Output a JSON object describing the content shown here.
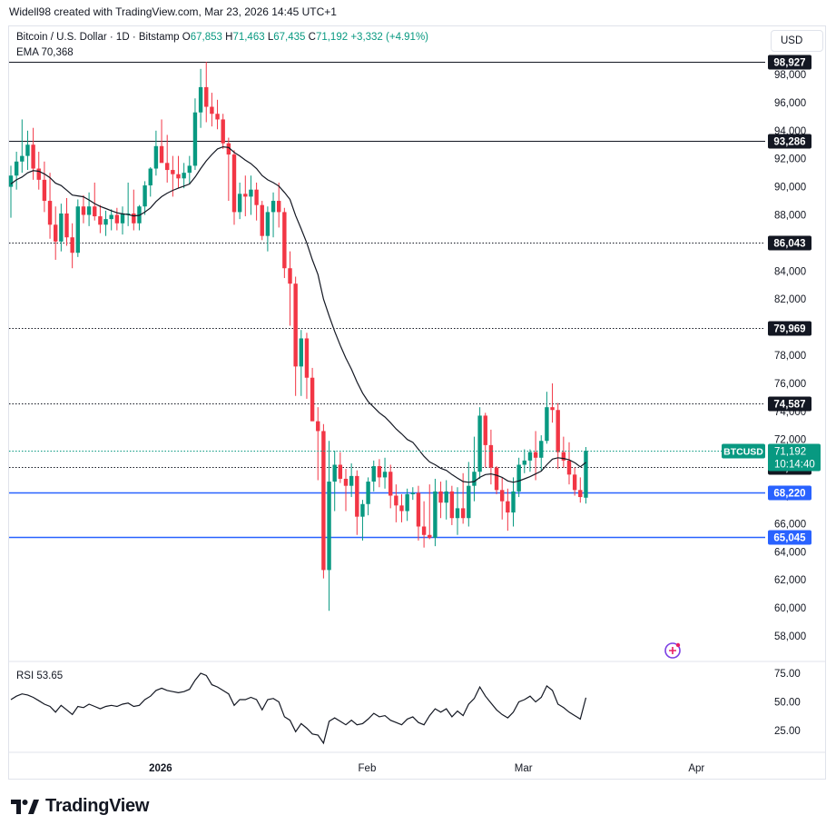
{
  "attribution": "Widell98 created with TradingView.com, Mar 23, 2026 14:45 UTC+1",
  "legend": {
    "symbol": "Bitcoin / U.S. Dollar · 1D · Bitstamp",
    "o_label": "O",
    "o": "67,853",
    "h_label": "H",
    "h": "71,463",
    "l_label": "L",
    "l": "67,435",
    "c_label": "C",
    "c": "71,192",
    "change": "+3,332 (+4.91%)",
    "ema_label": "EMA",
    "ema": "70,368",
    "rsi_label": "RSI",
    "rsi": "53.65"
  },
  "currency_button": "USD",
  "brand": "TradingView",
  "colors": {
    "up": "#089981",
    "down": "#f23645",
    "ema": "#131722",
    "blue": "#2962ff",
    "rsi": "#131722"
  },
  "chart_data": {
    "type": "candlestick",
    "y_axis": {
      "min": 57000,
      "max": 99500,
      "ticks": [
        "98,000",
        "96,000",
        "94,000",
        "92,000",
        "90,000",
        "88,000",
        "86,000",
        "84,000",
        "82,000",
        "80,000",
        "78,000",
        "76,000",
        "74,000",
        "72,000",
        "70,000",
        "68,000",
        "66,000",
        "64,000",
        "62,000",
        "60,000",
        "58,000"
      ],
      "tick_values": [
        98000,
        96000,
        94000,
        92000,
        90000,
        88000,
        86000,
        84000,
        82000,
        80000,
        78000,
        76000,
        74000,
        72000,
        70000,
        68000,
        66000,
        64000,
        62000,
        60000,
        58000
      ]
    },
    "x_axis": {
      "labels": [
        "2026",
        "Feb",
        "Mar",
        "Apr"
      ],
      "label_index": [
        26,
        63,
        91,
        122
      ]
    },
    "horizontal_levels": [
      {
        "value": 98927,
        "label": "98,927",
        "style": "solid",
        "color": "#131722"
      },
      {
        "value": 93286,
        "label": "93,286",
        "style": "solid",
        "color": "#131722"
      },
      {
        "value": 86043,
        "label": "86,043",
        "style": "dotted",
        "color": "#131722"
      },
      {
        "value": 79969,
        "label": "79,969",
        "style": "dotted",
        "color": "#131722"
      },
      {
        "value": 74587,
        "label": "74,587",
        "style": "dotted",
        "color": "#131722"
      },
      {
        "value": 70043,
        "label": "70,043",
        "style": "dotted",
        "color": "#131722"
      },
      {
        "value": 68220,
        "label": "68,220",
        "style": "solid",
        "color": "#2962ff"
      },
      {
        "value": 65045,
        "label": "65,045",
        "style": "solid",
        "color": "#2962ff"
      }
    ],
    "price_tag": {
      "symbol": "BTCUSD",
      "price": "71,192",
      "countdown": "10:14:40",
      "value": 71192
    },
    "candles": [
      [
        90000,
        91500,
        87800,
        90800
      ],
      [
        90800,
        92500,
        89800,
        91800
      ],
      [
        91800,
        94800,
        91000,
        92200
      ],
      [
        92200,
        94000,
        91200,
        93000
      ],
      [
        93000,
        94200,
        90500,
        91300
      ],
      [
        91300,
        92500,
        89800,
        90500
      ],
      [
        90500,
        91800,
        88200,
        89000
      ],
      [
        89000,
        91000,
        86300,
        87300
      ],
      [
        87300,
        88600,
        84800,
        86100
      ],
      [
        86100,
        88800,
        85400,
        88100
      ],
      [
        88100,
        89200,
        85800,
        86400
      ],
      [
        86400,
        87400,
        84200,
        85300
      ],
      [
        85300,
        89100,
        85000,
        88600
      ],
      [
        88600,
        89400,
        87400,
        88000
      ],
      [
        88000,
        89600,
        87200,
        88600
      ],
      [
        88600,
        90300,
        87600,
        87900
      ],
      [
        87900,
        88700,
        86700,
        87300
      ],
      [
        87300,
        88300,
        86500,
        87700
      ],
      [
        87700,
        88400,
        86900,
        88000
      ],
      [
        88000,
        88500,
        86900,
        87400
      ],
      [
        87400,
        88600,
        86600,
        88100
      ],
      [
        88100,
        90300,
        87200,
        88100
      ],
      [
        88100,
        89800,
        86900,
        87400
      ],
      [
        87400,
        88700,
        86900,
        88600
      ],
      [
        88600,
        90400,
        88000,
        90100
      ],
      [
        90100,
        91400,
        89300,
        91300
      ],
      [
        91300,
        94000,
        90800,
        92900
      ],
      [
        92900,
        94800,
        92000,
        91700
      ],
      [
        91700,
        93700,
        90300,
        91200
      ],
      [
        91200,
        92200,
        89300,
        90900
      ],
      [
        90900,
        92200,
        89900,
        90600
      ],
      [
        90600,
        91700,
        89900,
        91000
      ],
      [
        91000,
        92200,
        90200,
        91500
      ],
      [
        91500,
        96300,
        91200,
        95300
      ],
      [
        95300,
        98400,
        94200,
        97100
      ],
      [
        97100,
        98900,
        94600,
        95700
      ],
      [
        95700,
        96700,
        94300,
        95200
      ],
      [
        95200,
        96200,
        94100,
        94800
      ],
      [
        94800,
        95200,
        92700,
        93100
      ],
      [
        93100,
        93500,
        89000,
        92300
      ],
      [
        92300,
        92600,
        87300,
        88200
      ],
      [
        88200,
        90300,
        87700,
        89500
      ],
      [
        89500,
        90800,
        87900,
        89300
      ],
      [
        89300,
        90800,
        88000,
        89800
      ],
      [
        89800,
        90300,
        87600,
        88700
      ],
      [
        88700,
        89000,
        86200,
        86500
      ],
      [
        86500,
        88600,
        85400,
        88200
      ],
      [
        88200,
        89600,
        86400,
        89000
      ],
      [
        89000,
        90300,
        87100,
        88200
      ],
      [
        88200,
        88500,
        83500,
        84200
      ],
      [
        84200,
        85400,
        80100,
        83100
      ],
      [
        83100,
        83600,
        75100,
        77200
      ],
      [
        77200,
        79800,
        75100,
        79200
      ],
      [
        79200,
        79600,
        74900,
        76400
      ],
      [
        76400,
        77100,
        73300,
        73300
      ],
      [
        73300,
        74300,
        69100,
        72600
      ],
      [
        72600,
        73100,
        62100,
        62700
      ],
      [
        62700,
        71900,
        59800,
        69000
      ],
      [
        69000,
        71200,
        66900,
        70200
      ],
      [
        70200,
        71100,
        68900,
        69200
      ],
      [
        69200,
        69900,
        66900,
        68700
      ],
      [
        68700,
        70300,
        67900,
        69400
      ],
      [
        69400,
        69800,
        65200,
        66500
      ],
      [
        66500,
        67700,
        64800,
        67400
      ],
      [
        67400,
        69300,
        66600,
        69000
      ],
      [
        69000,
        70500,
        68300,
        70100
      ],
      [
        70100,
        70600,
        68600,
        69300
      ],
      [
        69300,
        70700,
        68500,
        69700
      ],
      [
        69700,
        70200,
        67100,
        68000
      ],
      [
        68000,
        68800,
        66100,
        67300
      ],
      [
        67300,
        68100,
        66100,
        66900
      ],
      [
        66900,
        68500,
        66200,
        68100
      ],
      [
        68100,
        68600,
        67700,
        68200
      ],
      [
        68200,
        68700,
        64800,
        65800
      ],
      [
        65800,
        67600,
        64300,
        65200
      ],
      [
        65200,
        68800,
        64900,
        65000
      ],
      [
        65000,
        69200,
        64400,
        68300
      ],
      [
        68300,
        69000,
        66400,
        67500
      ],
      [
        67500,
        69100,
        66300,
        68300
      ],
      [
        68300,
        68700,
        65900,
        66400
      ],
      [
        66400,
        68600,
        65200,
        67100
      ],
      [
        67100,
        69600,
        66000,
        66400
      ],
      [
        66400,
        70400,
        65800,
        68700
      ],
      [
        68700,
        72200,
        67600,
        69700
      ],
      [
        69700,
        74300,
        69200,
        73700
      ],
      [
        73700,
        73900,
        70000,
        71600
      ],
      [
        71600,
        72700,
        68800,
        70000
      ],
      [
        70000,
        70100,
        68100,
        68400
      ],
      [
        68400,
        69300,
        66300,
        67600
      ],
      [
        67600,
        68500,
        65500,
        66800
      ],
      [
        66800,
        69300,
        65800,
        68300
      ],
      [
        68300,
        70700,
        67900,
        70200
      ],
      [
        70200,
        71300,
        69600,
        70500
      ],
      [
        70500,
        71300,
        69700,
        71100
      ],
      [
        71100,
        72600,
        69100,
        70700
      ],
      [
        70700,
        72300,
        69800,
        71900
      ],
      [
        71900,
        75400,
        71700,
        74300
      ],
      [
        74300,
        76000,
        73200,
        74100
      ],
      [
        74100,
        74600,
        69900,
        71100
      ],
      [
        71100,
        72200,
        70000,
        70500
      ],
      [
        70500,
        71800,
        68800,
        69500
      ],
      [
        69500,
        70000,
        68000,
        68400
      ],
      [
        68400,
        69300,
        67500,
        67900
      ],
      [
        67853,
        71463,
        67435,
        71192
      ]
    ],
    "ema": [
      90200,
      90500,
      90700,
      91000,
      91150,
      91110,
      90920,
      90650,
      90260,
      90090,
      89760,
      89410,
      89350,
      89290,
      89060,
      88800,
      88600,
      88450,
      88300,
      88150,
      88070,
      88020,
      87930,
      87970,
      88200,
      88500,
      88950,
      89300,
      89550,
      89750,
      89900,
      90050,
      90200,
      90700,
      91300,
      91850,
      92300,
      92700,
      92850,
      92800,
      92450,
      92200,
      91900,
      91650,
      91300,
      90800,
      90500,
      90300,
      90050,
      89600,
      89100,
      87950,
      87000,
      86000,
      84800,
      83750,
      82000,
      80800,
      79700,
      78700,
      77800,
      77000,
      76100,
      75300,
      74700,
      74300,
      73900,
      73600,
      73200,
      72750,
      72400,
      72000,
      71800,
      71300,
      70800,
      70400,
      70200,
      69950,
      69800,
      69500,
      69250,
      69000,
      68950,
      69000,
      69300,
      69500,
      69550,
      69450,
      69300,
      69050,
      68950,
      69050,
      69200,
      69350,
      69550,
      69750,
      70200,
      70600,
      70700,
      70650,
      70550,
      70350,
      70050,
      70368
    ],
    "rsi": [
      52,
      55,
      57,
      56,
      54,
      51,
      48,
      46,
      41,
      47,
      43,
      39,
      46,
      45,
      48,
      46,
      44,
      46,
      47,
      46,
      48,
      49,
      46,
      47,
      52,
      55,
      60,
      62,
      60,
      59,
      58,
      59,
      61,
      69,
      75,
      73,
      65,
      63,
      60,
      57,
      47,
      52,
      52,
      54,
      52,
      43,
      52,
      53,
      50,
      37,
      34,
      24,
      31,
      27,
      22,
      21,
      14,
      33,
      36,
      33,
      30,
      34,
      30,
      31,
      35,
      40,
      37,
      38,
      34,
      32,
      30,
      35,
      37,
      32,
      30,
      38,
      44,
      41,
      44,
      37,
      42,
      38,
      48,
      53,
      63,
      55,
      49,
      43,
      39,
      36,
      41,
      50,
      52,
      55,
      50,
      54,
      64,
      60,
      48,
      45,
      41,
      38,
      35,
      53.65
    ],
    "rsi_axis": {
      "min": 10,
      "max": 82,
      "ticks": [
        "75.00",
        "50.00",
        "25.00"
      ],
      "tick_values": [
        75,
        50,
        25
      ]
    }
  }
}
